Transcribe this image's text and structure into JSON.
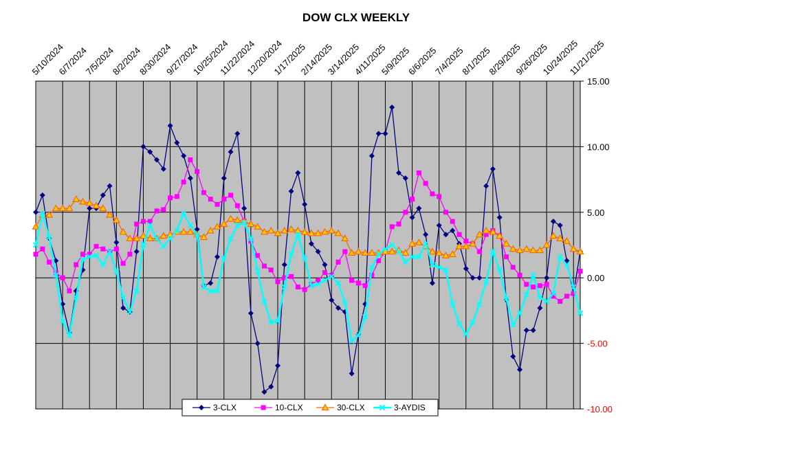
{
  "chart_data": {
    "type": "line",
    "title": "DOW CLX WEEKLY",
    "x_tick_labels": [
      "5/10/2024",
      "6/7/2024",
      "7/5/2024",
      "8/2/2024",
      "8/30/2024",
      "9/27/2024",
      "10/25/2024",
      "11/22/2024",
      "12/20/2024",
      "1/17/2025",
      "2/14/2025",
      "3/14/2025",
      "4/11/2025",
      "5/9/2025",
      "6/6/2025",
      "7/4/2025",
      "8/1/2025",
      "8/29/2025",
      "9/26/2025",
      "10/24/2025",
      "11/21/2025"
    ],
    "y_tick_labels": [
      "15.00",
      "10.00",
      "5.00",
      "0.00",
      "-5.00",
      "-10.00"
    ],
    "ylim": [
      -10,
      15
    ],
    "grid": true,
    "legend_position": "bottom",
    "colors": {
      "plot_bg": "#c0c0c0",
      "grid": "#000000",
      "neg_tick": "#ff0000"
    },
    "series": [
      {
        "name": "3-CLX",
        "color": "#000080",
        "marker": "diamond",
        "values": [
          5.0,
          6.3,
          3.0,
          1.3,
          -2.0,
          -4.2,
          -1.0,
          0.6,
          5.3,
          5.3,
          6.3,
          7.0,
          2.7,
          -2.3,
          -2.6,
          2.0,
          10.0,
          9.6,
          9.0,
          8.3,
          11.6,
          10.3,
          9.3,
          7.6,
          3.7,
          -0.6,
          -0.4,
          1.6,
          7.6,
          9.6,
          11.0,
          5.3,
          -2.7,
          -5.0,
          -8.7,
          -8.3,
          -6.7,
          1.0,
          6.6,
          8.0,
          5.6,
          2.6,
          2.0,
          1.0,
          -1.7,
          -2.3,
          -2.6,
          -7.3,
          -4.3,
          -2.0,
          9.3,
          11.0,
          11.0,
          13.0,
          8.0,
          7.6,
          4.6,
          5.3,
          3.3,
          -0.4,
          4.0,
          3.3,
          3.6,
          2.6,
          0.7,
          0.0,
          0.0,
          7.0,
          8.3,
          4.6,
          -1.7,
          -6.0,
          -7.0,
          -4.0,
          -4.0,
          -2.3,
          0.0,
          4.3,
          4.0,
          1.3,
          -1.2,
          2.0
        ]
      },
      {
        "name": "10-CLX",
        "color": "#ff00ff",
        "marker": "square",
        "values": [
          1.8,
          2.2,
          1.2,
          0.4,
          0.0,
          -1.0,
          1.0,
          1.8,
          1.8,
          2.4,
          2.2,
          2.0,
          2.2,
          1.1,
          1.8,
          4.1,
          4.3,
          4.3,
          5.1,
          5.2,
          6.1,
          6.2,
          7.3,
          9.0,
          8.1,
          6.5,
          6.0,
          5.6,
          6.0,
          6.3,
          5.5,
          4.3,
          2.8,
          1.7,
          0.9,
          0.6,
          -0.3,
          0.0,
          0.1,
          -0.7,
          -0.9,
          -0.5,
          -0.2,
          0.4,
          0.2,
          1.2,
          2.0,
          -0.2,
          -0.4,
          -0.6,
          0.2,
          1.3,
          2.0,
          3.9,
          4.1,
          5.0,
          6.0,
          8.0,
          7.2,
          6.4,
          6.2,
          5.0,
          4.3,
          3.3,
          2.8,
          2.6,
          2.0,
          3.3,
          3.6,
          3.2,
          1.6,
          0.8,
          0.2,
          -0.5,
          -0.7,
          -0.6,
          -0.5,
          -1.4,
          -1.8,
          -1.4,
          -1.2,
          0.5
        ]
      },
      {
        "name": "30-CLX",
        "color": "#ff6600",
        "marker": "triangle",
        "values": [
          3.9,
          4.8,
          4.8,
          5.3,
          5.3,
          5.3,
          6.0,
          5.8,
          5.7,
          5.5,
          5.3,
          4.8,
          4.4,
          3.5,
          3.0,
          3.0,
          3.2,
          3.0,
          3.0,
          3.2,
          3.3,
          3.5,
          3.5,
          3.5,
          3.3,
          3.1,
          3.6,
          3.9,
          4.1,
          4.5,
          4.4,
          4.3,
          4.1,
          3.9,
          3.5,
          3.6,
          3.4,
          3.6,
          3.7,
          3.6,
          3.5,
          3.4,
          3.4,
          3.5,
          3.6,
          3.4,
          3.0,
          1.9,
          2.0,
          1.9,
          1.9,
          1.9,
          2.0,
          2.0,
          2.1,
          1.9,
          2.6,
          2.7,
          2.4,
          2.0,
          1.9,
          1.7,
          1.8,
          2.4,
          2.4,
          2.6,
          3.3,
          3.6,
          3.5,
          3.2,
          2.6,
          2.2,
          2.1,
          2.2,
          2.1,
          2.1,
          2.5,
          3.2,
          3.0,
          2.8,
          2.2,
          2.0
        ]
      },
      {
        "name": "3-AYDIS",
        "color": "#00ffff",
        "marker": "x",
        "values": [
          2.5,
          4.9,
          3.1,
          0.2,
          -3.3,
          -4.4,
          -1.5,
          1.4,
          1.6,
          1.7,
          1.0,
          2.0,
          0.5,
          -1.5,
          -2.6,
          -1.0,
          2.5,
          4.0,
          3.0,
          2.4,
          3.0,
          3.6,
          4.9,
          4.0,
          3.3,
          -0.7,
          -1.0,
          -1.0,
          1.5,
          3.0,
          4.0,
          4.2,
          3.0,
          0.5,
          -1.8,
          -3.4,
          -3.3,
          -0.7,
          1.8,
          3.3,
          1.5,
          -0.6,
          -0.5,
          -0.2,
          0.1,
          -0.4,
          -1.9,
          -4.8,
          -4.4,
          -3.0,
          0.8,
          1.8,
          2.2,
          2.5,
          2.0,
          1.2,
          1.6,
          1.6,
          2.6,
          1.0,
          0.8,
          0.6,
          -2.0,
          -3.5,
          -4.3,
          -3.4,
          -2.0,
          -0.3,
          2.0,
          0.6,
          -1.6,
          -3.6,
          -2.7,
          -1.3,
          0.2,
          -1.5,
          -1.8,
          -1.2,
          1.6,
          1.0,
          -0.7,
          -2.7
        ]
      }
    ]
  }
}
